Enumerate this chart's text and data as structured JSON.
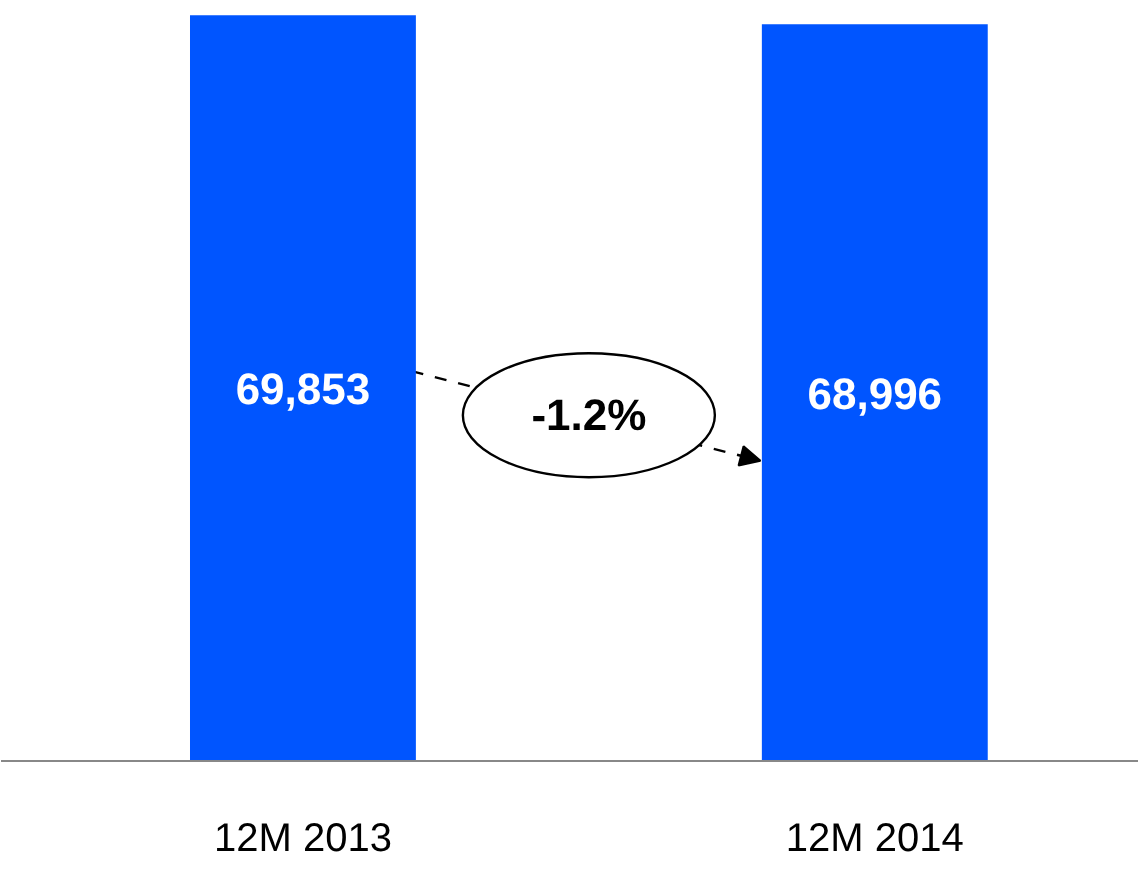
{
  "chart_data": {
    "type": "bar",
    "categories": [
      "12M 2013",
      "12M 2014"
    ],
    "values": [
      69853,
      68996
    ],
    "color": "#0055ff",
    "data_labels": true,
    "value_labels": [
      "69,853",
      "68,996"
    ],
    "annotations": [
      "-1.2%"
    ]
  }
}
